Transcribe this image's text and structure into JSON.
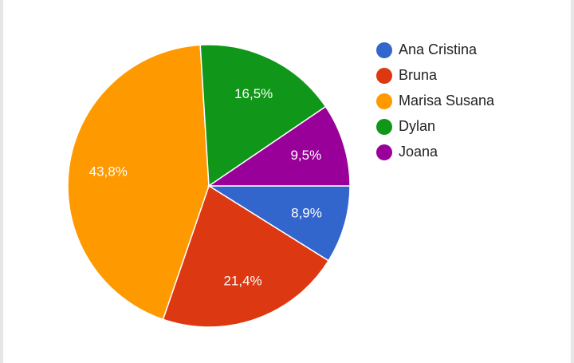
{
  "chart_data": {
    "type": "pie",
    "categories": [
      "Ana Cristina",
      "Bruna",
      "Marisa Susana",
      "Dylan",
      "Joana"
    ],
    "values": [
      8.9,
      21.4,
      43.8,
      16.5,
      9.5
    ],
    "value_labels": [
      "8,9%",
      "21,4%",
      "43,8%",
      "16,5%",
      "9,5%"
    ],
    "colors": [
      "#3366cc",
      "#dc3912",
      "#ff9900",
      "#109618",
      "#990099"
    ],
    "legend": "right"
  }
}
